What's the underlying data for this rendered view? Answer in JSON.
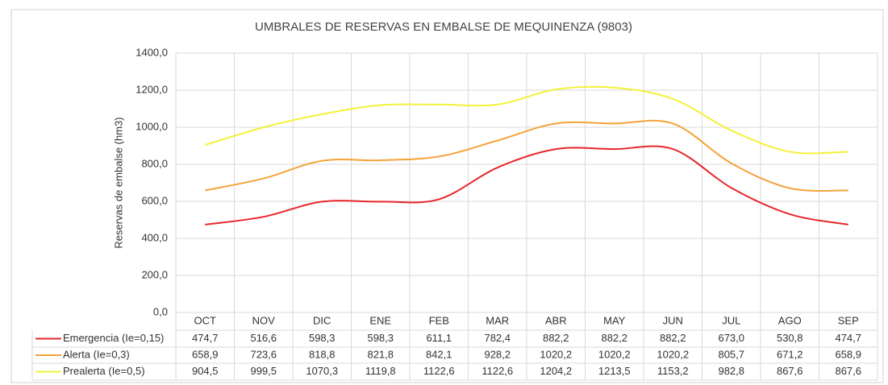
{
  "chart_data": {
    "type": "line",
    "title": "UMBRALES DE RESERVAS EN EMBALSE DE MEQUINENZA (9803)",
    "y_label": "Reservas de embalse (hm3)",
    "categories": [
      "OCT",
      "NOV",
      "DIC",
      "ENE",
      "FEB",
      "MAR",
      "ABR",
      "MAY",
      "JUN",
      "JUL",
      "AGO",
      "SEP"
    ],
    "series": [
      {
        "name": "Emergencia (Ie=0,15)",
        "color": "#e8262b",
        "values": [
          474.7,
          516.6,
          598.3,
          598.3,
          611.1,
          782.4,
          882.2,
          882.2,
          882.2,
          673.0,
          530.8,
          474.7
        ],
        "value_labels": [
          "474,7",
          "516,6",
          "598,3",
          "598,3",
          "611,1",
          "782,4",
          "882,2",
          "882,2",
          "882,2",
          "673,0",
          "530,8",
          "474,7"
        ]
      },
      {
        "name": "Alerta (Ie=0,3)",
        "color": "#f5a33a",
        "values": [
          658.9,
          723.6,
          818.8,
          821.8,
          842.1,
          928.2,
          1020.2,
          1020.2,
          1020.2,
          805.7,
          671.2,
          658.9
        ],
        "value_labels": [
          "658,9",
          "723,6",
          "818,8",
          "821,8",
          "842,1",
          "928,2",
          "1020,2",
          "1020,2",
          "1020,2",
          "805,7",
          "671,2",
          "658,9"
        ]
      },
      {
        "name": "Prealerta (Ie=0,5)",
        "color": "#f2f23a",
        "values": [
          904.5,
          999.5,
          1070.3,
          1119.8,
          1122.6,
          1122.6,
          1204.2,
          1213.5,
          1153.2,
          982.8,
          867.6,
          867.6
        ],
        "value_labels": [
          "904,5",
          "999,5",
          "1070,3",
          "1119,8",
          "1122,6",
          "1122,6",
          "1204,2",
          "1213,5",
          "1153,2",
          "982,8",
          "867,6",
          "867,6"
        ]
      }
    ],
    "ylim": [
      0,
      1400
    ],
    "yticks": [
      {
        "value": 0,
        "label": "0,0"
      },
      {
        "value": 200,
        "label": "200,0"
      },
      {
        "value": 400,
        "label": "400,0"
      },
      {
        "value": 600,
        "label": "600,0"
      },
      {
        "value": 800,
        "label": "800,0"
      },
      {
        "value": 1000,
        "label": "1000,0"
      },
      {
        "value": 1200,
        "label": "1200,0"
      },
      {
        "value": 1400,
        "label": "1400,0"
      }
    ],
    "grid": true
  }
}
